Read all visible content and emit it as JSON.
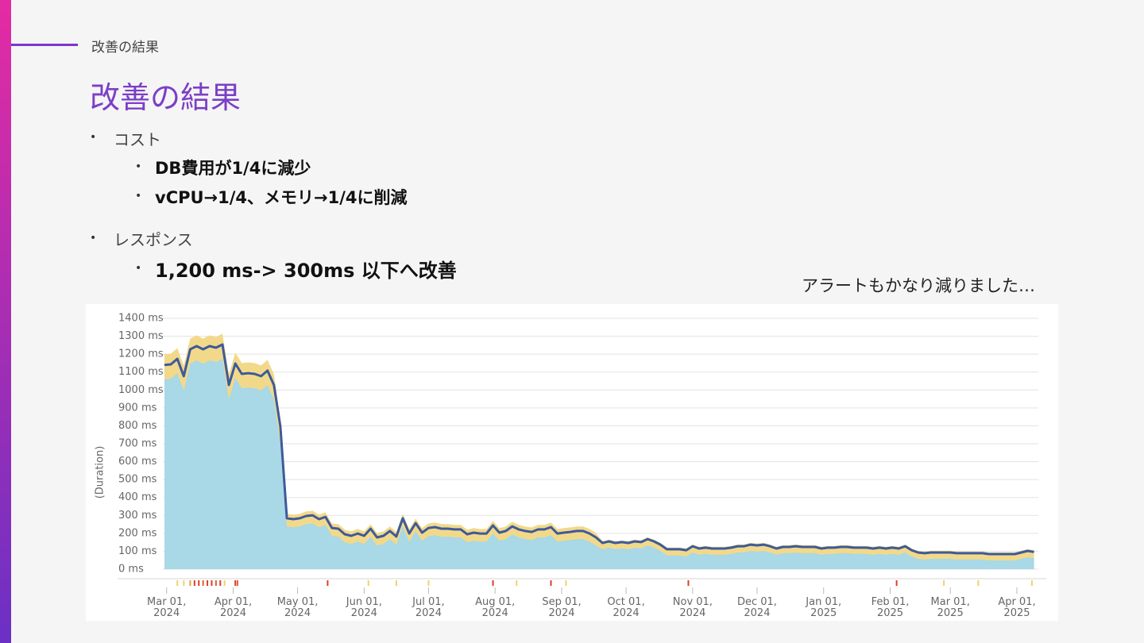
{
  "section_label": "改善の結果",
  "title": "改善の結果",
  "bullets": [
    {
      "text": "コスト",
      "sub": [
        "DB費用が1/4に減少",
        "vCPU→1/4、メモリ→1/4に削減"
      ]
    },
    {
      "text": "レスポンス",
      "sub": [
        "1,200 ms-> 300ms 以下へ改善"
      ]
    }
  ],
  "note": "アラートもかなり減りました…",
  "chart_data": {
    "type": "area",
    "y_label": "(Duration)",
    "grid": true,
    "xlim": [
      "2024-02-29",
      "2025-04-11"
    ],
    "ylim": [
      0,
      1400
    ],
    "yticks": [
      {
        "value": 0,
        "label": "0 ms"
      },
      {
        "value": 100,
        "label": "100 ms"
      },
      {
        "value": 200,
        "label": "200 ms"
      },
      {
        "value": 300,
        "label": "300 ms"
      },
      {
        "value": 400,
        "label": "400 ms"
      },
      {
        "value": 500,
        "label": "500 ms"
      },
      {
        "value": 600,
        "label": "600 ms"
      },
      {
        "value": 700,
        "label": "700 ms"
      },
      {
        "value": 800,
        "label": "800 ms"
      },
      {
        "value": 900,
        "label": "900 ms"
      },
      {
        "value": 1000,
        "label": "1000 ms"
      },
      {
        "value": 1100,
        "label": "1100 ms"
      },
      {
        "value": 1200,
        "label": "1200 ms"
      },
      {
        "value": 1300,
        "label": "1300 ms"
      },
      {
        "value": 1400,
        "label": "1400 ms"
      }
    ],
    "xticks": [
      {
        "value": "2024-03-01",
        "label": "Mar 01,\n2024"
      },
      {
        "value": "2024-04-01",
        "label": "Apr 01,\n2024"
      },
      {
        "value": "2024-05-01",
        "label": "May 01,\n2024"
      },
      {
        "value": "2024-06-01",
        "label": "Jun 01,\n2024"
      },
      {
        "value": "2024-07-01",
        "label": "Jul 01,\n2024"
      },
      {
        "value": "2024-08-01",
        "label": "Aug 01,\n2024"
      },
      {
        "value": "2024-09-01",
        "label": "Sep 01,\n2024"
      },
      {
        "value": "2024-10-01",
        "label": "Oct 01,\n2024"
      },
      {
        "value": "2024-11-01",
        "label": "Nov 01,\n2024"
      },
      {
        "value": "2024-12-01",
        "label": "Dec 01,\n2024"
      },
      {
        "value": "2025-01-01",
        "label": "Jan 01,\n2025"
      },
      {
        "value": "2025-02-01",
        "label": "Feb 01,\n2025"
      },
      {
        "value": "2025-03-01",
        "label": "Mar 01,\n2025"
      },
      {
        "value": "2025-04-01",
        "label": "Apr 01,\n2025"
      }
    ],
    "x": [
      "2024-02-29",
      "2024-03-03",
      "2024-03-06",
      "2024-03-09",
      "2024-03-12",
      "2024-03-15",
      "2024-03-18",
      "2024-03-21",
      "2024-03-24",
      "2024-03-27",
      "2024-03-30",
      "2024-04-02",
      "2024-04-05",
      "2024-04-08",
      "2024-04-11",
      "2024-04-14",
      "2024-04-17",
      "2024-04-20",
      "2024-04-23",
      "2024-04-26",
      "2024-04-29",
      "2024-05-02",
      "2024-05-05",
      "2024-05-08",
      "2024-05-11",
      "2024-05-14",
      "2024-05-17",
      "2024-05-20",
      "2024-05-23",
      "2024-05-26",
      "2024-05-29",
      "2024-06-01",
      "2024-06-04",
      "2024-06-07",
      "2024-06-10",
      "2024-06-13",
      "2024-06-16",
      "2024-06-19",
      "2024-06-22",
      "2024-06-25",
      "2024-06-28",
      "2024-07-01",
      "2024-07-04",
      "2024-07-07",
      "2024-07-10",
      "2024-07-13",
      "2024-07-16",
      "2024-07-19",
      "2024-07-22",
      "2024-07-25",
      "2024-07-28",
      "2024-07-31",
      "2024-08-03",
      "2024-08-06",
      "2024-08-09",
      "2024-08-12",
      "2024-08-15",
      "2024-08-18",
      "2024-08-21",
      "2024-08-24",
      "2024-08-27",
      "2024-08-30",
      "2024-09-02",
      "2024-09-05",
      "2024-09-08",
      "2024-09-11",
      "2024-09-14",
      "2024-09-17",
      "2024-09-20",
      "2024-09-23",
      "2024-09-26",
      "2024-09-29",
      "2024-10-02",
      "2024-10-05",
      "2024-10-08",
      "2024-10-11",
      "2024-10-14",
      "2024-10-17",
      "2024-10-20",
      "2024-10-23",
      "2024-10-26",
      "2024-10-29",
      "2024-11-01",
      "2024-11-04",
      "2024-11-07",
      "2024-11-10",
      "2024-11-13",
      "2024-11-16",
      "2024-11-19",
      "2024-11-22",
      "2024-11-25",
      "2024-11-28",
      "2024-12-01",
      "2024-12-04",
      "2024-12-07",
      "2024-12-10",
      "2024-12-13",
      "2024-12-16",
      "2024-12-19",
      "2024-12-22",
      "2024-12-25",
      "2024-12-28",
      "2024-12-31",
      "2025-01-03",
      "2025-01-06",
      "2025-01-09",
      "2025-01-12",
      "2025-01-15",
      "2025-01-18",
      "2025-01-21",
      "2025-01-24",
      "2025-01-27",
      "2025-01-30",
      "2025-02-02",
      "2025-02-05",
      "2025-02-08",
      "2025-02-11",
      "2025-02-14",
      "2025-02-17",
      "2025-02-20",
      "2025-02-23",
      "2025-02-26",
      "2025-03-01",
      "2025-03-04",
      "2025-03-07",
      "2025-03-10",
      "2025-03-13",
      "2025-03-16",
      "2025-03-19",
      "2025-03-22",
      "2025-03-25",
      "2025-03-28",
      "2025-03-31",
      "2025-04-03",
      "2025-04-06",
      "2025-04-09"
    ],
    "series": [
      {
        "kind": "area",
        "color": "#f2d98a",
        "values": [
          1200,
          1203,
          1234,
          1137,
          1287,
          1305,
          1287,
          1305,
          1296,
          1314,
          1088,
          1208,
          1150,
          1154,
          1150,
          1137,
          1168,
          1088,
          840,
          309,
          304,
          309,
          322,
          326,
          304,
          317,
          255,
          251,
          220,
          211,
          224,
          211,
          251,
          202,
          211,
          238,
          207,
          309,
          224,
          282,
          229,
          255,
          260,
          251,
          251,
          247,
          247,
          220,
          229,
          224,
          224,
          269,
          229,
          238,
          264,
          247,
          238,
          233,
          247,
          247,
          260,
          224,
          229,
          233,
          238,
          238,
          224,
          202,
          156,
          165,
          156,
          161,
          156,
          165,
          161,
          178,
          165,
          147,
          121,
          121,
          121,
          116,
          138,
          125,
          130,
          125,
          125,
          125,
          130,
          138,
          138,
          147,
          143,
          147,
          138,
          125,
          134,
          134,
          138,
          134,
          134,
          134,
          125,
          130,
          130,
          134,
          134,
          130,
          130,
          130,
          125,
          130,
          125,
          130,
          125,
          138,
          116,
          103,
          99,
          103,
          103,
          103,
          103,
          99,
          99,
          99,
          99,
          99,
          94,
          94,
          94,
          94,
          94,
          103,
          112,
          106
        ]
      },
      {
        "kind": "area",
        "color": "#a9d8e6",
        "values": [
          1060,
          1063,
          1094,
          997,
          1147,
          1165,
          1147,
          1165,
          1156,
          1174,
          948,
          1068,
          1010,
          1014,
          1010,
          997,
          1028,
          948,
          700,
          239,
          234,
          239,
          252,
          256,
          234,
          247,
          185,
          181,
          150,
          141,
          154,
          141,
          181,
          132,
          141,
          168,
          137,
          239,
          154,
          212,
          159,
          185,
          190,
          181,
          181,
          177,
          177,
          150,
          159,
          154,
          154,
          199,
          159,
          168,
          194,
          177,
          168,
          163,
          177,
          177,
          190,
          154,
          159,
          163,
          168,
          168,
          154,
          132,
          111,
          120,
          111,
          116,
          111,
          120,
          116,
          133,
          120,
          102,
          76,
          76,
          76,
          71,
          93,
          80,
          85,
          80,
          80,
          80,
          85,
          93,
          93,
          102,
          98,
          102,
          93,
          80,
          89,
          89,
          93,
          89,
          89,
          89,
          80,
          85,
          85,
          89,
          89,
          85,
          85,
          85,
          80,
          85,
          80,
          85,
          80,
          93,
          71,
          58,
          54,
          58,
          58,
          58,
          58,
          54,
          54,
          54,
          54,
          54,
          49,
          49,
          49,
          49,
          49,
          58,
          67,
          61
        ]
      },
      {
        "kind": "line",
        "color": "#3d5a9b",
        "values": [
          1140,
          1143,
          1174,
          1077,
          1227,
          1245,
          1227,
          1245,
          1236,
          1254,
          1028,
          1148,
          1090,
          1094,
          1090,
          1077,
          1108,
          1028,
          797,
          284,
          279,
          284,
          297,
          301,
          279,
          292,
          230,
          226,
          195,
          186,
          199,
          186,
          226,
          177,
          186,
          213,
          182,
          284,
          199,
          257,
          204,
          230,
          235,
          226,
          226,
          222,
          222,
          195,
          204,
          199,
          199,
          244,
          204,
          213,
          239,
          222,
          213,
          208,
          222,
          222,
          235,
          199,
          204,
          208,
          213,
          213,
          199,
          177,
          146,
          155,
          146,
          151,
          146,
          155,
          151,
          168,
          155,
          137,
          111,
          111,
          111,
          106,
          128,
          115,
          120,
          115,
          115,
          115,
          120,
          128,
          128,
          137,
          133,
          137,
          128,
          115,
          124,
          124,
          128,
          124,
          124,
          124,
          115,
          120,
          120,
          124,
          124,
          120,
          120,
          120,
          115,
          120,
          115,
          120,
          115,
          128,
          106,
          93,
          89,
          93,
          93,
          93,
          93,
          89,
          89,
          89,
          89,
          89,
          84,
          84,
          84,
          84,
          84,
          93,
          102,
          96
        ]
      }
    ],
    "alerts": [
      {
        "x": "2024-03-06",
        "color": "#f2d06b"
      },
      {
        "x": "2024-03-09",
        "color": "#f2d06b"
      },
      {
        "x": "2024-03-12",
        "color": "#e8a040"
      },
      {
        "x": "2024-03-14",
        "color": "#d9402a"
      },
      {
        "x": "2024-03-16",
        "color": "#d9402a"
      },
      {
        "x": "2024-03-18",
        "color": "#e06030"
      },
      {
        "x": "2024-03-20",
        "color": "#d9402a"
      },
      {
        "x": "2024-03-22",
        "color": "#d9402a"
      },
      {
        "x": "2024-03-24",
        "color": "#e06030"
      },
      {
        "x": "2024-03-26",
        "color": "#d9402a"
      },
      {
        "x": "2024-03-28",
        "color": "#f2d06b"
      },
      {
        "x": "2024-04-02",
        "color": "#d9402a"
      },
      {
        "x": "2024-04-03",
        "color": "#e06030"
      },
      {
        "x": "2024-05-15",
        "color": "#d9402a"
      },
      {
        "x": "2024-06-03",
        "color": "#f2d06b"
      },
      {
        "x": "2024-06-16",
        "color": "#f2d06b"
      },
      {
        "x": "2024-07-01",
        "color": "#f2d06b"
      },
      {
        "x": "2024-07-31",
        "color": "#d9402a"
      },
      {
        "x": "2024-08-11",
        "color": "#f2d06b"
      },
      {
        "x": "2024-08-27",
        "color": "#d9402a"
      },
      {
        "x": "2024-09-03",
        "color": "#f2d06b"
      },
      {
        "x": "2024-10-30",
        "color": "#d9402a"
      },
      {
        "x": "2025-02-04",
        "color": "#d9402a"
      },
      {
        "x": "2025-02-26",
        "color": "#f2d06b"
      },
      {
        "x": "2025-03-14",
        "color": "#f2d06b"
      },
      {
        "x": "2025-04-08",
        "color": "#f2d06b"
      }
    ]
  }
}
